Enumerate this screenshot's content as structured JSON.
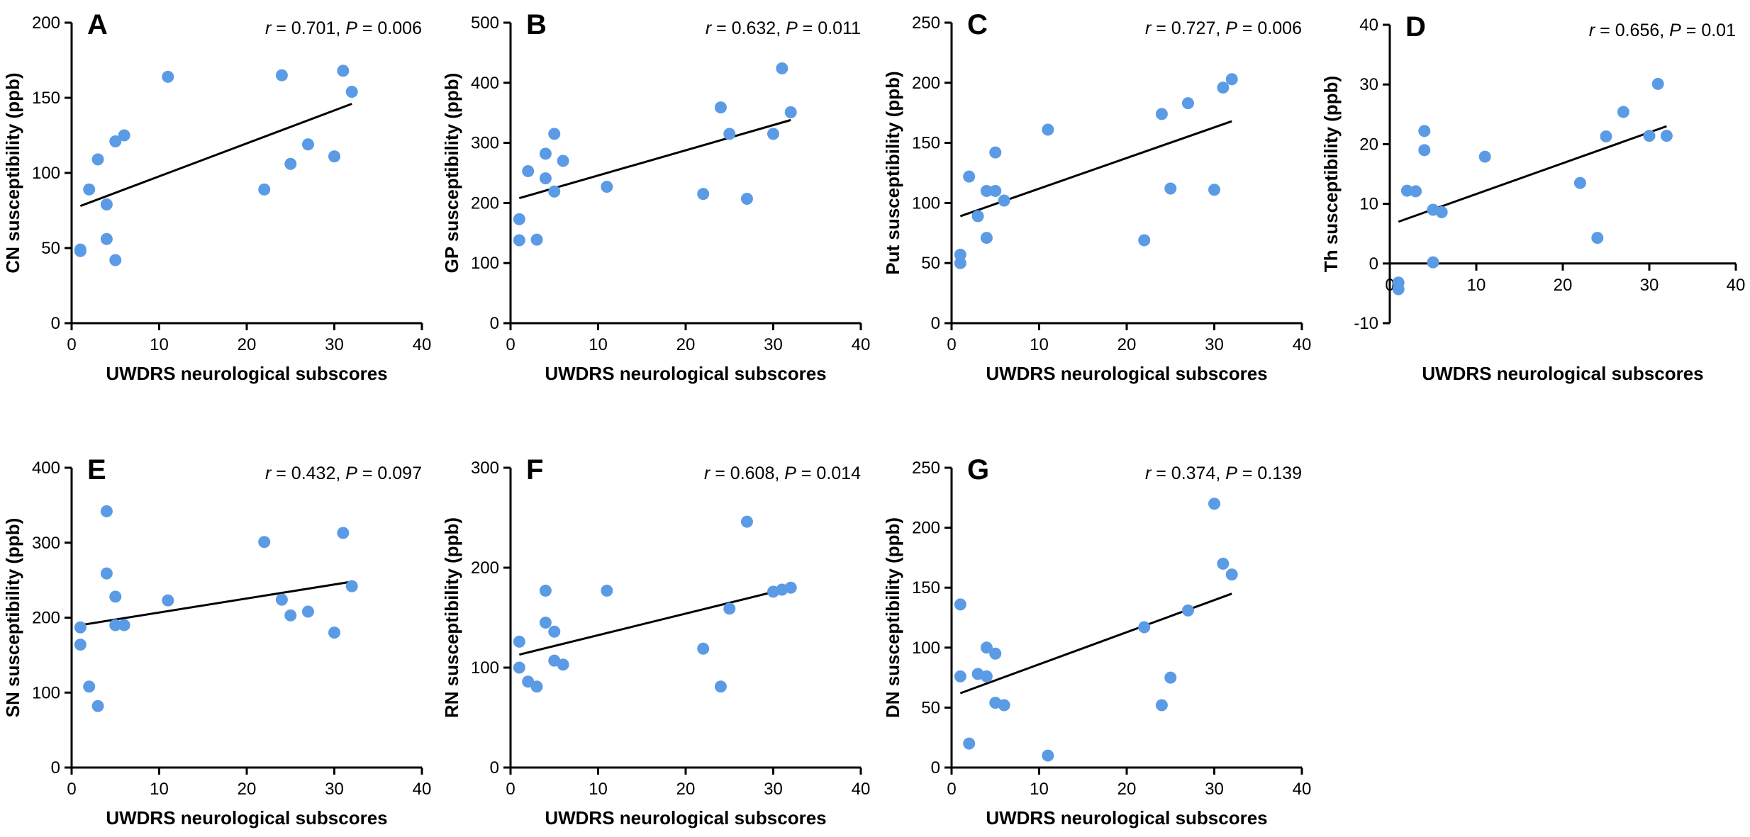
{
  "chart_data": [
    {
      "type": "scatter",
      "panel": "A",
      "xlabel": "UWDRS neurological subscores",
      "ylabel": "CN susceptibility (ppb)",
      "xlim": [
        0,
        40
      ],
      "ylim": [
        0,
        200
      ],
      "xticks": [
        0,
        10,
        20,
        30,
        40
      ],
      "yticks": [
        0,
        50,
        100,
        150,
        200
      ],
      "r_label": "r",
      "r_value": " = 0.701, ",
      "p_label": "P",
      "p_value": " = 0.006",
      "points": [
        [
          1,
          48
        ],
        [
          1,
          49
        ],
        [
          2,
          89
        ],
        [
          3,
          109
        ],
        [
          4,
          79
        ],
        [
          4,
          56
        ],
        [
          5,
          121
        ],
        [
          5,
          42
        ],
        [
          6,
          125
        ],
        [
          11,
          164
        ],
        [
          22,
          89
        ],
        [
          24,
          165
        ],
        [
          25,
          106
        ],
        [
          27,
          119
        ],
        [
          30,
          111
        ],
        [
          31,
          168
        ],
        [
          32,
          154
        ]
      ],
      "fit": [
        [
          1,
          78
        ],
        [
          32,
          146
        ]
      ]
    },
    {
      "type": "scatter",
      "panel": "B",
      "xlabel": "UWDRS neurological subscores",
      "ylabel": "GP susceptibility (ppb)",
      "xlim": [
        0,
        40
      ],
      "ylim": [
        0,
        500
      ],
      "xticks": [
        0,
        10,
        20,
        30,
        40
      ],
      "yticks": [
        0,
        100,
        200,
        300,
        400,
        500
      ],
      "r_label": "r",
      "r_value": " = 0.632, ",
      "p_label": "P",
      "p_value": " = 0.011",
      "points": [
        [
          1,
          138
        ],
        [
          1,
          173
        ],
        [
          2,
          253
        ],
        [
          3,
          139
        ],
        [
          4,
          282
        ],
        [
          4,
          241
        ],
        [
          5,
          315
        ],
        [
          5,
          219
        ],
        [
          6,
          270
        ],
        [
          11,
          227
        ],
        [
          22,
          215
        ],
        [
          24,
          359
        ],
        [
          25,
          315
        ],
        [
          27,
          207
        ],
        [
          30,
          315
        ],
        [
          31,
          424
        ],
        [
          32,
          351
        ]
      ],
      "fit": [
        [
          1,
          208
        ],
        [
          32,
          338
        ]
      ]
    },
    {
      "type": "scatter",
      "panel": "C",
      "xlabel": "UWDRS neurological subscores",
      "ylabel": "Put susceptibility (ppb)",
      "xlim": [
        0,
        40
      ],
      "ylim": [
        0,
        250
      ],
      "xticks": [
        0,
        10,
        20,
        30,
        40
      ],
      "yticks": [
        0,
        50,
        100,
        150,
        200,
        250
      ],
      "r_label": "r",
      "r_value": " = 0.727, ",
      "p_label": "P",
      "p_value": " = 0.006",
      "points": [
        [
          1,
          50
        ],
        [
          1,
          57
        ],
        [
          2,
          122
        ],
        [
          3,
          89
        ],
        [
          4,
          110
        ],
        [
          4,
          71
        ],
        [
          5,
          142
        ],
        [
          5,
          110
        ],
        [
          6,
          102
        ],
        [
          11,
          161
        ],
        [
          22,
          69
        ],
        [
          24,
          174
        ],
        [
          25,
          112
        ],
        [
          27,
          183
        ],
        [
          30,
          111
        ],
        [
          31,
          196
        ],
        [
          32,
          203
        ]
      ],
      "fit": [
        [
          1,
          89
        ],
        [
          32,
          168
        ]
      ]
    },
    {
      "type": "scatter",
      "panel": "D",
      "xlabel": "UWDRS neurological subscores",
      "ylabel": "Th susceptibility (ppb)",
      "xlim": [
        0,
        40
      ],
      "ylim": [
        -10,
        40
      ],
      "xticks": [
        0,
        10,
        20,
        30,
        40
      ],
      "yticks": [
        -10,
        0,
        10,
        20,
        30,
        40
      ],
      "r_label": "r",
      "r_value": " = 0.656, ",
      "p_label": "P",
      "p_value": " = 0.01",
      "points": [
        [
          1,
          -4.3
        ],
        [
          1,
          -3.2
        ],
        [
          2,
          12.2
        ],
        [
          3,
          12.1
        ],
        [
          4,
          22.2
        ],
        [
          4,
          19.0
        ],
        [
          5,
          9.0
        ],
        [
          5,
          0.2
        ],
        [
          6,
          8.6
        ],
        [
          11,
          17.9
        ],
        [
          22,
          13.5
        ],
        [
          24,
          4.3
        ],
        [
          25,
          21.3
        ],
        [
          27,
          25.4
        ],
        [
          30,
          21.4
        ],
        [
          31,
          30.1
        ],
        [
          32,
          21.4
        ]
      ],
      "fit": [
        [
          1,
          7.0
        ],
        [
          32,
          23.0
        ]
      ]
    },
    {
      "type": "scatter",
      "panel": "E",
      "xlabel": "UWDRS neurological subscores",
      "ylabel": "SN susceptibility (ppb)",
      "xlim": [
        0,
        40
      ],
      "ylim": [
        0,
        400
      ],
      "xticks": [
        0,
        10,
        20,
        30,
        40
      ],
      "yticks": [
        0,
        100,
        200,
        300,
        400
      ],
      "r_label": "r",
      "r_value": " = 0.432, ",
      "p_label": "P",
      "p_value": " = 0.097",
      "points": [
        [
          1,
          187
        ],
        [
          1,
          164
        ],
        [
          2,
          108
        ],
        [
          3,
          82
        ],
        [
          4,
          342
        ],
        [
          4,
          259
        ],
        [
          5,
          228
        ],
        [
          5,
          190
        ],
        [
          6,
          190
        ],
        [
          11,
          223
        ],
        [
          22,
          301
        ],
        [
          24,
          224
        ],
        [
          25,
          203
        ],
        [
          27,
          208
        ],
        [
          30,
          180
        ],
        [
          31,
          313
        ],
        [
          32,
          242
        ]
      ],
      "fit": [
        [
          1,
          190
        ],
        [
          32,
          248
        ]
      ]
    },
    {
      "type": "scatter",
      "panel": "F",
      "xlabel": "UWDRS neurological subscores",
      "ylabel": "RN susceptibility (ppb)",
      "xlim": [
        0,
        40
      ],
      "ylim": [
        0,
        300
      ],
      "xticks": [
        0,
        10,
        20,
        30,
        40
      ],
      "yticks": [
        0,
        100,
        200,
        300
      ],
      "r_label": "r",
      "r_value": " = 0.608, ",
      "p_label": "P",
      "p_value": " = 0.014",
      "points": [
        [
          1,
          126
        ],
        [
          1,
          100
        ],
        [
          2,
          86
        ],
        [
          3,
          81
        ],
        [
          4,
          177
        ],
        [
          4,
          145
        ],
        [
          5,
          136
        ],
        [
          5,
          107
        ],
        [
          6,
          103
        ],
        [
          11,
          177
        ],
        [
          22,
          119
        ],
        [
          24,
          81
        ],
        [
          25,
          159
        ],
        [
          27,
          246
        ],
        [
          30,
          176
        ],
        [
          31,
          178
        ],
        [
          32,
          180
        ]
      ],
      "fit": [
        [
          1,
          113
        ],
        [
          32,
          180
        ]
      ]
    },
    {
      "type": "scatter",
      "panel": "G",
      "xlabel": "UWDRS neurological subscores",
      "ylabel": "DN susceptibility (ppb)",
      "xlim": [
        0,
        40
      ],
      "ylim": [
        0,
        250
      ],
      "xticks": [
        0,
        10,
        20,
        30,
        40
      ],
      "yticks": [
        0,
        50,
        100,
        150,
        200,
        250
      ],
      "r_label": "r",
      "r_value": " = 0.374, ",
      "p_label": "P",
      "p_value": " = 0.139",
      "points": [
        [
          1,
          136
        ],
        [
          1,
          76
        ],
        [
          2,
          20
        ],
        [
          3,
          78
        ],
        [
          4,
          100
        ],
        [
          4,
          76
        ],
        [
          5,
          95
        ],
        [
          5,
          54
        ],
        [
          6,
          52
        ],
        [
          11,
          10
        ],
        [
          22,
          117
        ],
        [
          24,
          52
        ],
        [
          25,
          75
        ],
        [
          27,
          131
        ],
        [
          30,
          220
        ],
        [
          31,
          170
        ],
        [
          32,
          161
        ]
      ],
      "fit": [
        [
          1,
          62
        ],
        [
          32,
          145
        ]
      ]
    }
  ],
  "colors": {
    "dot": "#5b9be6",
    "line": "#000000"
  }
}
